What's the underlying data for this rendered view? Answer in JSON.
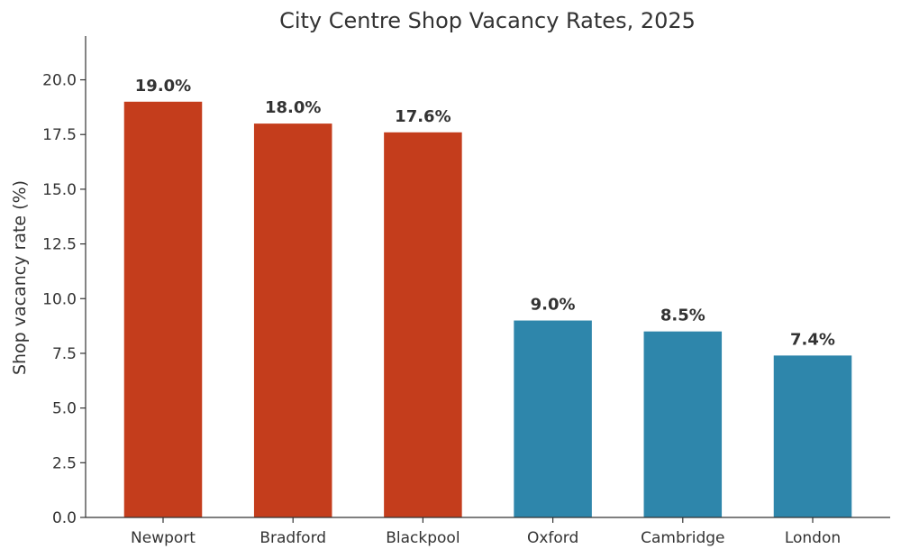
{
  "chart_data": {
    "type": "bar",
    "title": "City Centre Shop Vacancy Rates, 2025",
    "xlabel": "",
    "ylabel": "Shop vacancy rate (%)",
    "ylim": [
      0,
      22
    ],
    "yticks": [
      "0.0",
      "2.5",
      "5.0",
      "7.5",
      "10.0",
      "12.5",
      "15.0",
      "17.5",
      "20.0"
    ],
    "grid": false,
    "categories": [
      "Newport",
      "Bradford",
      "Blackpool",
      "Oxford",
      "Cambridge",
      "London"
    ],
    "values": [
      19.0,
      18.0,
      17.6,
      9.0,
      8.5,
      7.4
    ],
    "data_labels": [
      "19.0%",
      "18.0%",
      "17.6%",
      "9.0%",
      "8.5%",
      "7.4%"
    ],
    "colors": [
      "#c43d1c",
      "#c43d1c",
      "#c43d1c",
      "#2e86ab",
      "#2e86ab",
      "#2e86ab"
    ]
  }
}
